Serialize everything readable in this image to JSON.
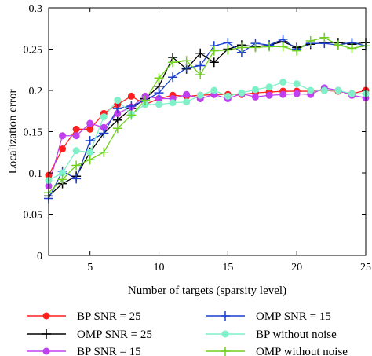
{
  "chart_data": {
    "type": "line",
    "xlabel": "Number of targets (sparsity level)",
    "ylabel": "Localization error",
    "xlim": [
      2,
      25
    ],
    "ylim": [
      0,
      0.3
    ],
    "xticks": [
      5,
      10,
      15,
      20,
      25
    ],
    "yticks": [
      0,
      0.05,
      0.1,
      0.15,
      0.2,
      0.25,
      0.3
    ],
    "grid": false,
    "legend_placement": "below",
    "x": [
      2,
      3,
      4,
      5,
      6,
      7,
      8,
      9,
      10,
      11,
      12,
      13,
      14,
      15,
      16,
      17,
      18,
      19,
      20,
      21,
      22,
      23,
      24,
      25
    ],
    "series": [
      {
        "name": "BP SNR = 25",
        "color": "#ff1f1f",
        "marker": "circle",
        "values": [
          0.097,
          0.129,
          0.153,
          0.153,
          0.172,
          0.183,
          0.193,
          0.183,
          0.19,
          0.194,
          0.193,
          0.194,
          0.195,
          0.195,
          0.195,
          0.197,
          0.198,
          0.199,
          0.199,
          0.199,
          0.2,
          0.199,
          0.196,
          0.2
        ]
      },
      {
        "name": "OMP SNR = 25",
        "color": "#000000",
        "marker": "plus",
        "values": [
          0.072,
          0.087,
          0.096,
          0.125,
          0.148,
          0.164,
          0.178,
          0.19,
          0.205,
          0.24,
          0.226,
          0.245,
          0.234,
          0.25,
          0.255,
          0.253,
          0.255,
          0.259,
          0.252,
          0.256,
          0.258,
          0.258,
          0.256,
          0.258
        ]
      },
      {
        "name": "BP SNR = 15",
        "color": "#c040f0",
        "marker": "circle",
        "values": [
          0.084,
          0.145,
          0.145,
          0.16,
          0.155,
          0.172,
          0.18,
          0.193,
          0.19,
          0.19,
          0.195,
          0.19,
          0.195,
          0.19,
          0.196,
          0.192,
          0.194,
          0.195,
          0.196,
          0.195,
          0.203,
          0.2,
          0.194,
          0.191
        ]
      },
      {
        "name": "OMP SNR = 15",
        "color": "#1a3fcf",
        "marker": "plus",
        "values": [
          0.069,
          0.102,
          0.093,
          0.139,
          0.148,
          0.178,
          0.181,
          0.188,
          0.197,
          0.216,
          0.227,
          0.23,
          0.254,
          0.258,
          0.246,
          0.257,
          0.255,
          0.262,
          0.25,
          0.257,
          0.257,
          0.255,
          0.258,
          0.254
        ]
      },
      {
        "name": "BP without noise",
        "color": "#80f0c8",
        "marker": "circle",
        "values": [
          0.091,
          0.1,
          0.127,
          0.125,
          0.168,
          0.188,
          0.171,
          0.183,
          0.183,
          0.185,
          0.186,
          0.194,
          0.2,
          0.193,
          0.197,
          0.201,
          0.204,
          0.21,
          0.208,
          0.2,
          0.2,
          0.2,
          0.196,
          0.196
        ]
      },
      {
        "name": "OMP without noise",
        "color": "#70d020",
        "marker": "plus",
        "values": [
          0.076,
          0.092,
          0.109,
          0.116,
          0.125,
          0.154,
          0.17,
          0.188,
          0.215,
          0.234,
          0.236,
          0.219,
          0.248,
          0.249,
          0.252,
          0.252,
          0.253,
          0.253,
          0.248,
          0.26,
          0.264,
          0.255,
          0.251,
          0.254
        ]
      }
    ]
  }
}
